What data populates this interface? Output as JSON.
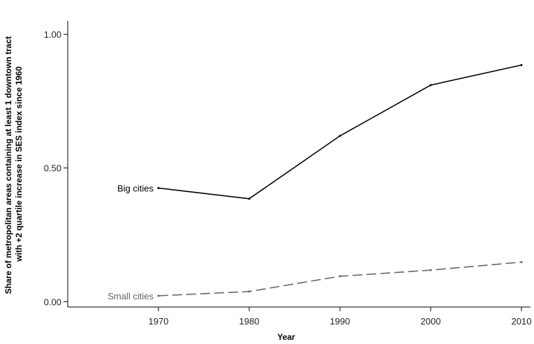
{
  "chart_data": {
    "type": "line",
    "xlabel": "Year",
    "ylabel_lines": [
      "Share of metropolitan areas containing at least 1 downtown tract",
      "with +2 quartile increase in SES index since 1960"
    ],
    "x": [
      1970,
      1980,
      1990,
      2000,
      2010
    ],
    "x_ticks": [
      "1970",
      "1980",
      "1990",
      "2000",
      "2010"
    ],
    "y_ticks": [
      0,
      0.5,
      1.0
    ],
    "y_tick_labels": [
      "0.00",
      "0.50",
      "1.00"
    ],
    "xlim": [
      1960,
      2011
    ],
    "ylim": [
      -0.02,
      1.05
    ],
    "grid": false,
    "series": [
      {
        "name": "Big cities",
        "values": [
          0.425,
          0.385,
          0.62,
          0.81,
          0.885
        ],
        "color": "#000000",
        "dash": "solid"
      },
      {
        "name": "Small cities",
        "values": [
          0.022,
          0.038,
          0.095,
          0.118,
          0.148
        ],
        "color": "#666666",
        "dash": "dashed"
      }
    ]
  }
}
